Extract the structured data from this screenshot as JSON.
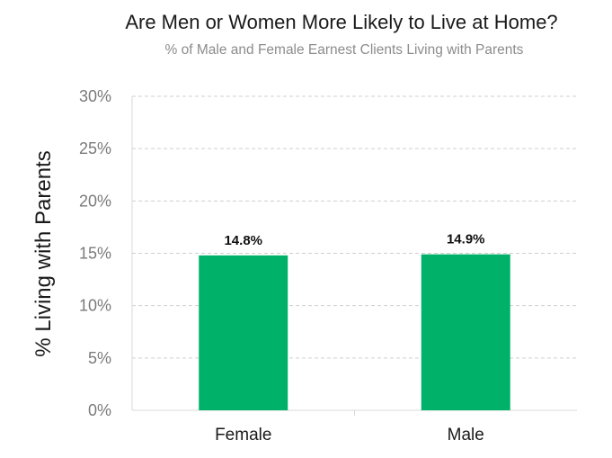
{
  "chart_data": {
    "type": "bar",
    "title": "Are Men or Women More Likely to Live at Home?",
    "subtitle": "% of Male and Female Earnest Clients Living with Parents",
    "xlabel": "",
    "ylabel": "% Living with Parents",
    "categories": [
      "Female",
      "Male"
    ],
    "values": [
      14.8,
      14.9
    ],
    "data_labels": [
      "14.8%",
      "14.9%"
    ],
    "ylim": [
      0,
      30
    ],
    "yticks": [
      0,
      5,
      10,
      15,
      20,
      25,
      30
    ],
    "ytick_labels": [
      "0%",
      "5%",
      "10%",
      "15%",
      "20%",
      "25%",
      "30%"
    ],
    "bar_color": "#00b16a",
    "grid": true,
    "legend": "none"
  }
}
